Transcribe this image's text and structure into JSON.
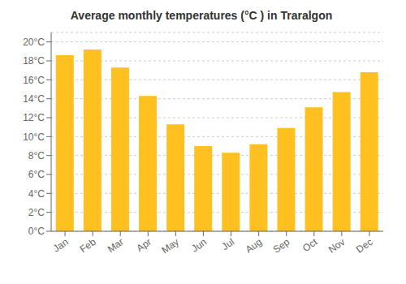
{
  "chart_data": {
    "type": "bar",
    "title": "Average monthly temperatures (°C ) in Traralgon",
    "categories": [
      "Jan",
      "Feb",
      "Mar",
      "Apr",
      "May",
      "Jun",
      "Jul",
      "Aug",
      "Sep",
      "Oct",
      "Nov",
      "Dec"
    ],
    "values": [
      18.6,
      19.2,
      17.3,
      14.3,
      11.3,
      9.0,
      8.3,
      9.2,
      10.9,
      13.1,
      14.7,
      16.8
    ],
    "color": "#FFC020",
    "ylim": [
      0,
      21
    ],
    "yticks": [
      {
        "value": 0,
        "label": "0°C"
      },
      {
        "value": 2,
        "label": "2°C"
      },
      {
        "value": 4,
        "label": "4°C"
      },
      {
        "value": 6,
        "label": "6°C"
      },
      {
        "value": 8,
        "label": "8°C"
      },
      {
        "value": 10,
        "label": "10°C"
      },
      {
        "value": 12,
        "label": "12°C"
      },
      {
        "value": 14,
        "label": "14°C"
      },
      {
        "value": 16,
        "label": "16°C"
      },
      {
        "value": 18,
        "label": "18°C"
      },
      {
        "value": 20,
        "label": "20°C"
      }
    ],
    "grid": true
  }
}
